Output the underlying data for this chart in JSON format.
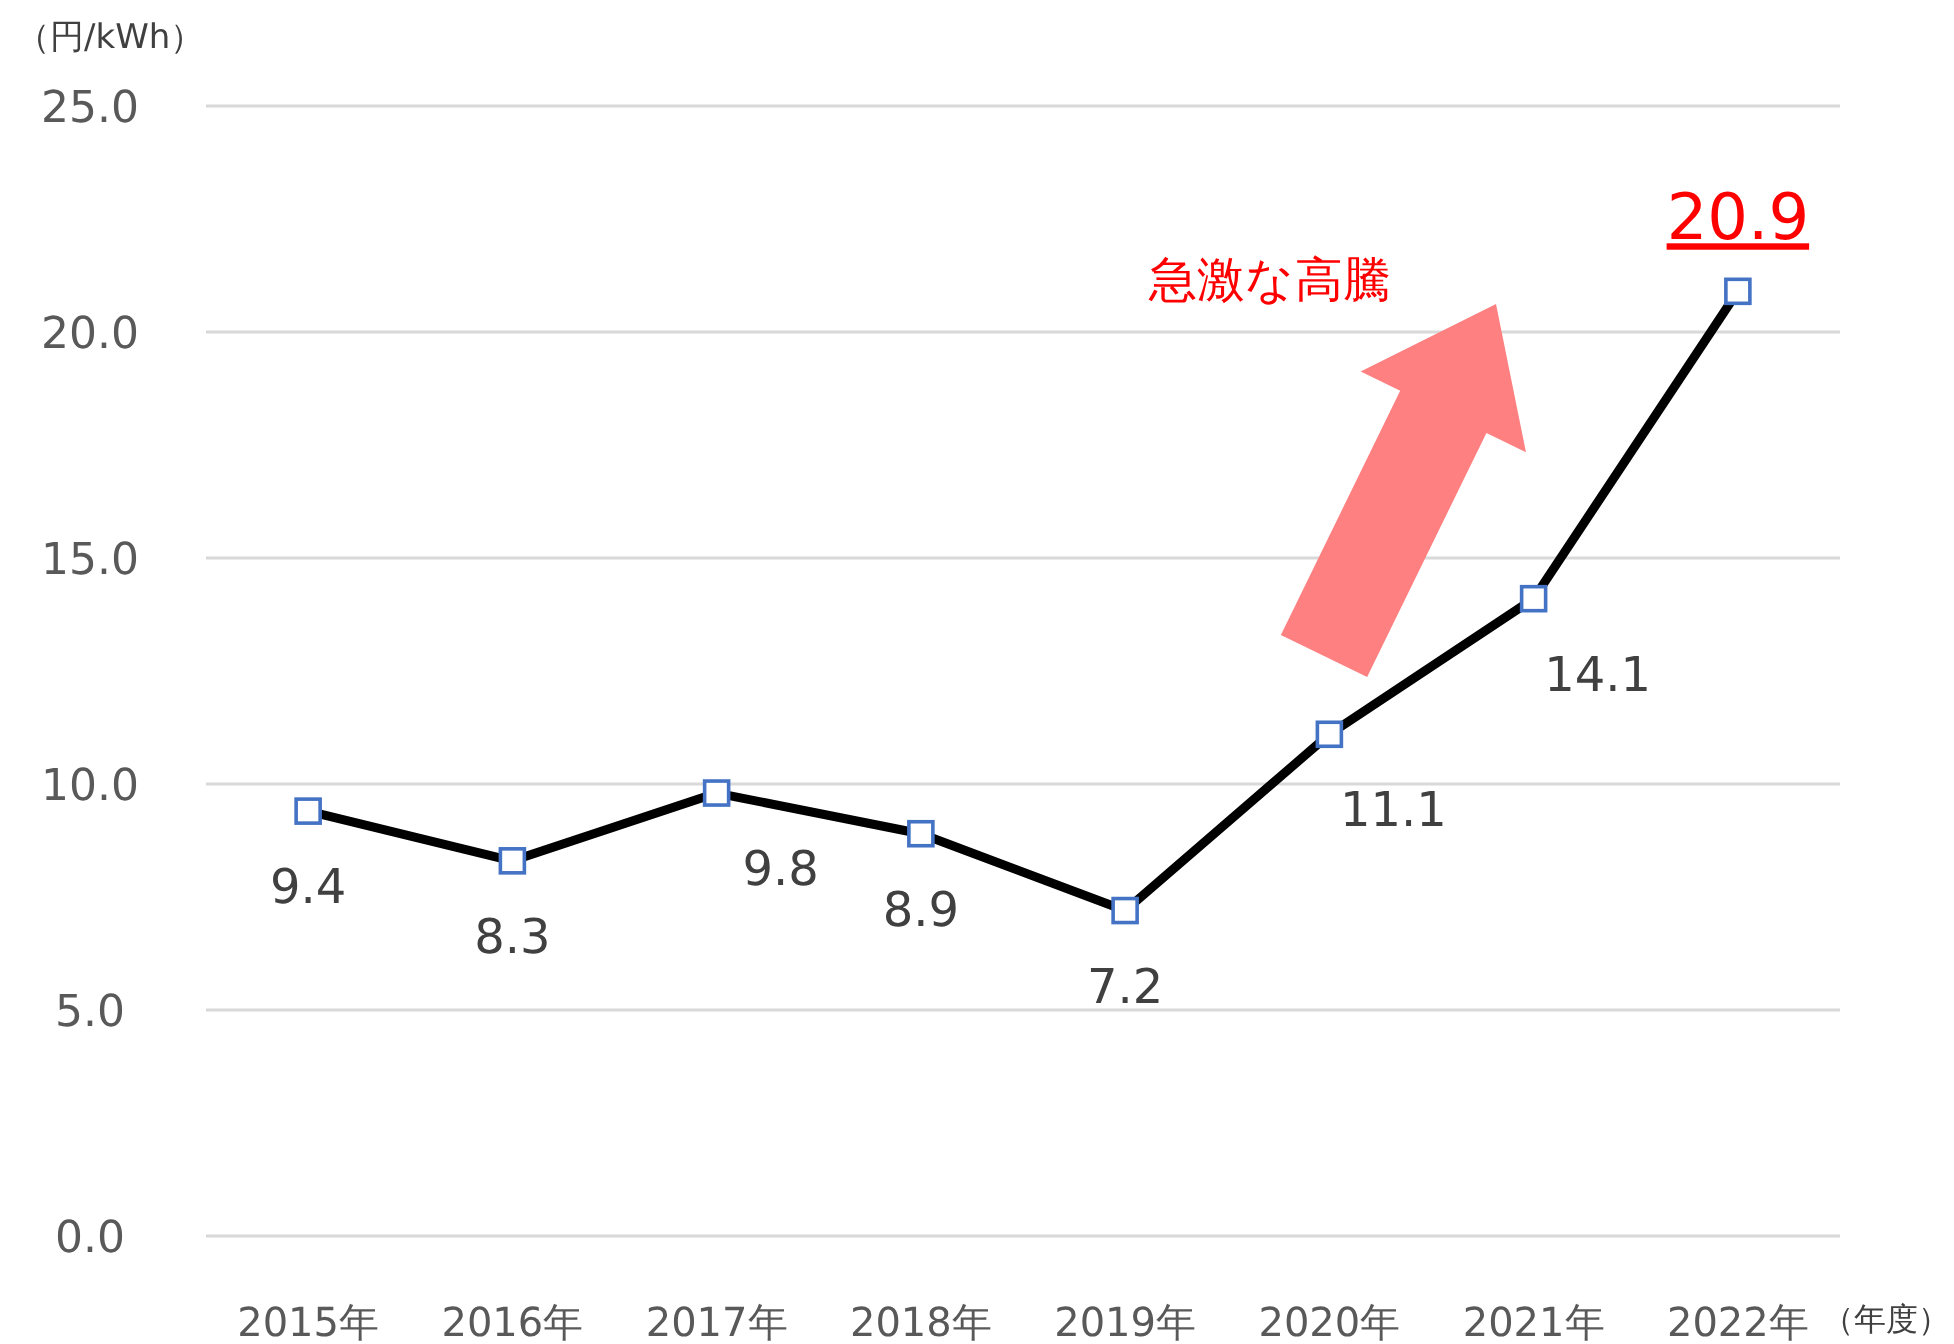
{
  "chart_data": {
    "type": "line",
    "ylabel": "（円/kWh）",
    "xlabel": "（年度）",
    "categories": [
      "2015年",
      "2016年",
      "2017年",
      "2018年",
      "2019年",
      "2020年",
      "2021年",
      "2022年"
    ],
    "values": [
      9.4,
      8.3,
      9.8,
      8.9,
      7.2,
      11.1,
      14.1,
      20.9
    ],
    "color": "#000000",
    "marker": "square",
    "grid": "y",
    "data_labels": true,
    "ylim": [
      0,
      25
    ],
    "yticks": [
      {
        "value": 0,
        "label": "0.0"
      },
      {
        "value": 5,
        "label": "5.0"
      },
      {
        "value": 10,
        "label": "10.0"
      },
      {
        "value": 15,
        "label": "15.0"
      },
      {
        "value": 20,
        "label": "20.0"
      },
      {
        "value": 25,
        "label": "25.0"
      }
    ],
    "annotations": [
      "急激な高騰"
    ]
  }
}
